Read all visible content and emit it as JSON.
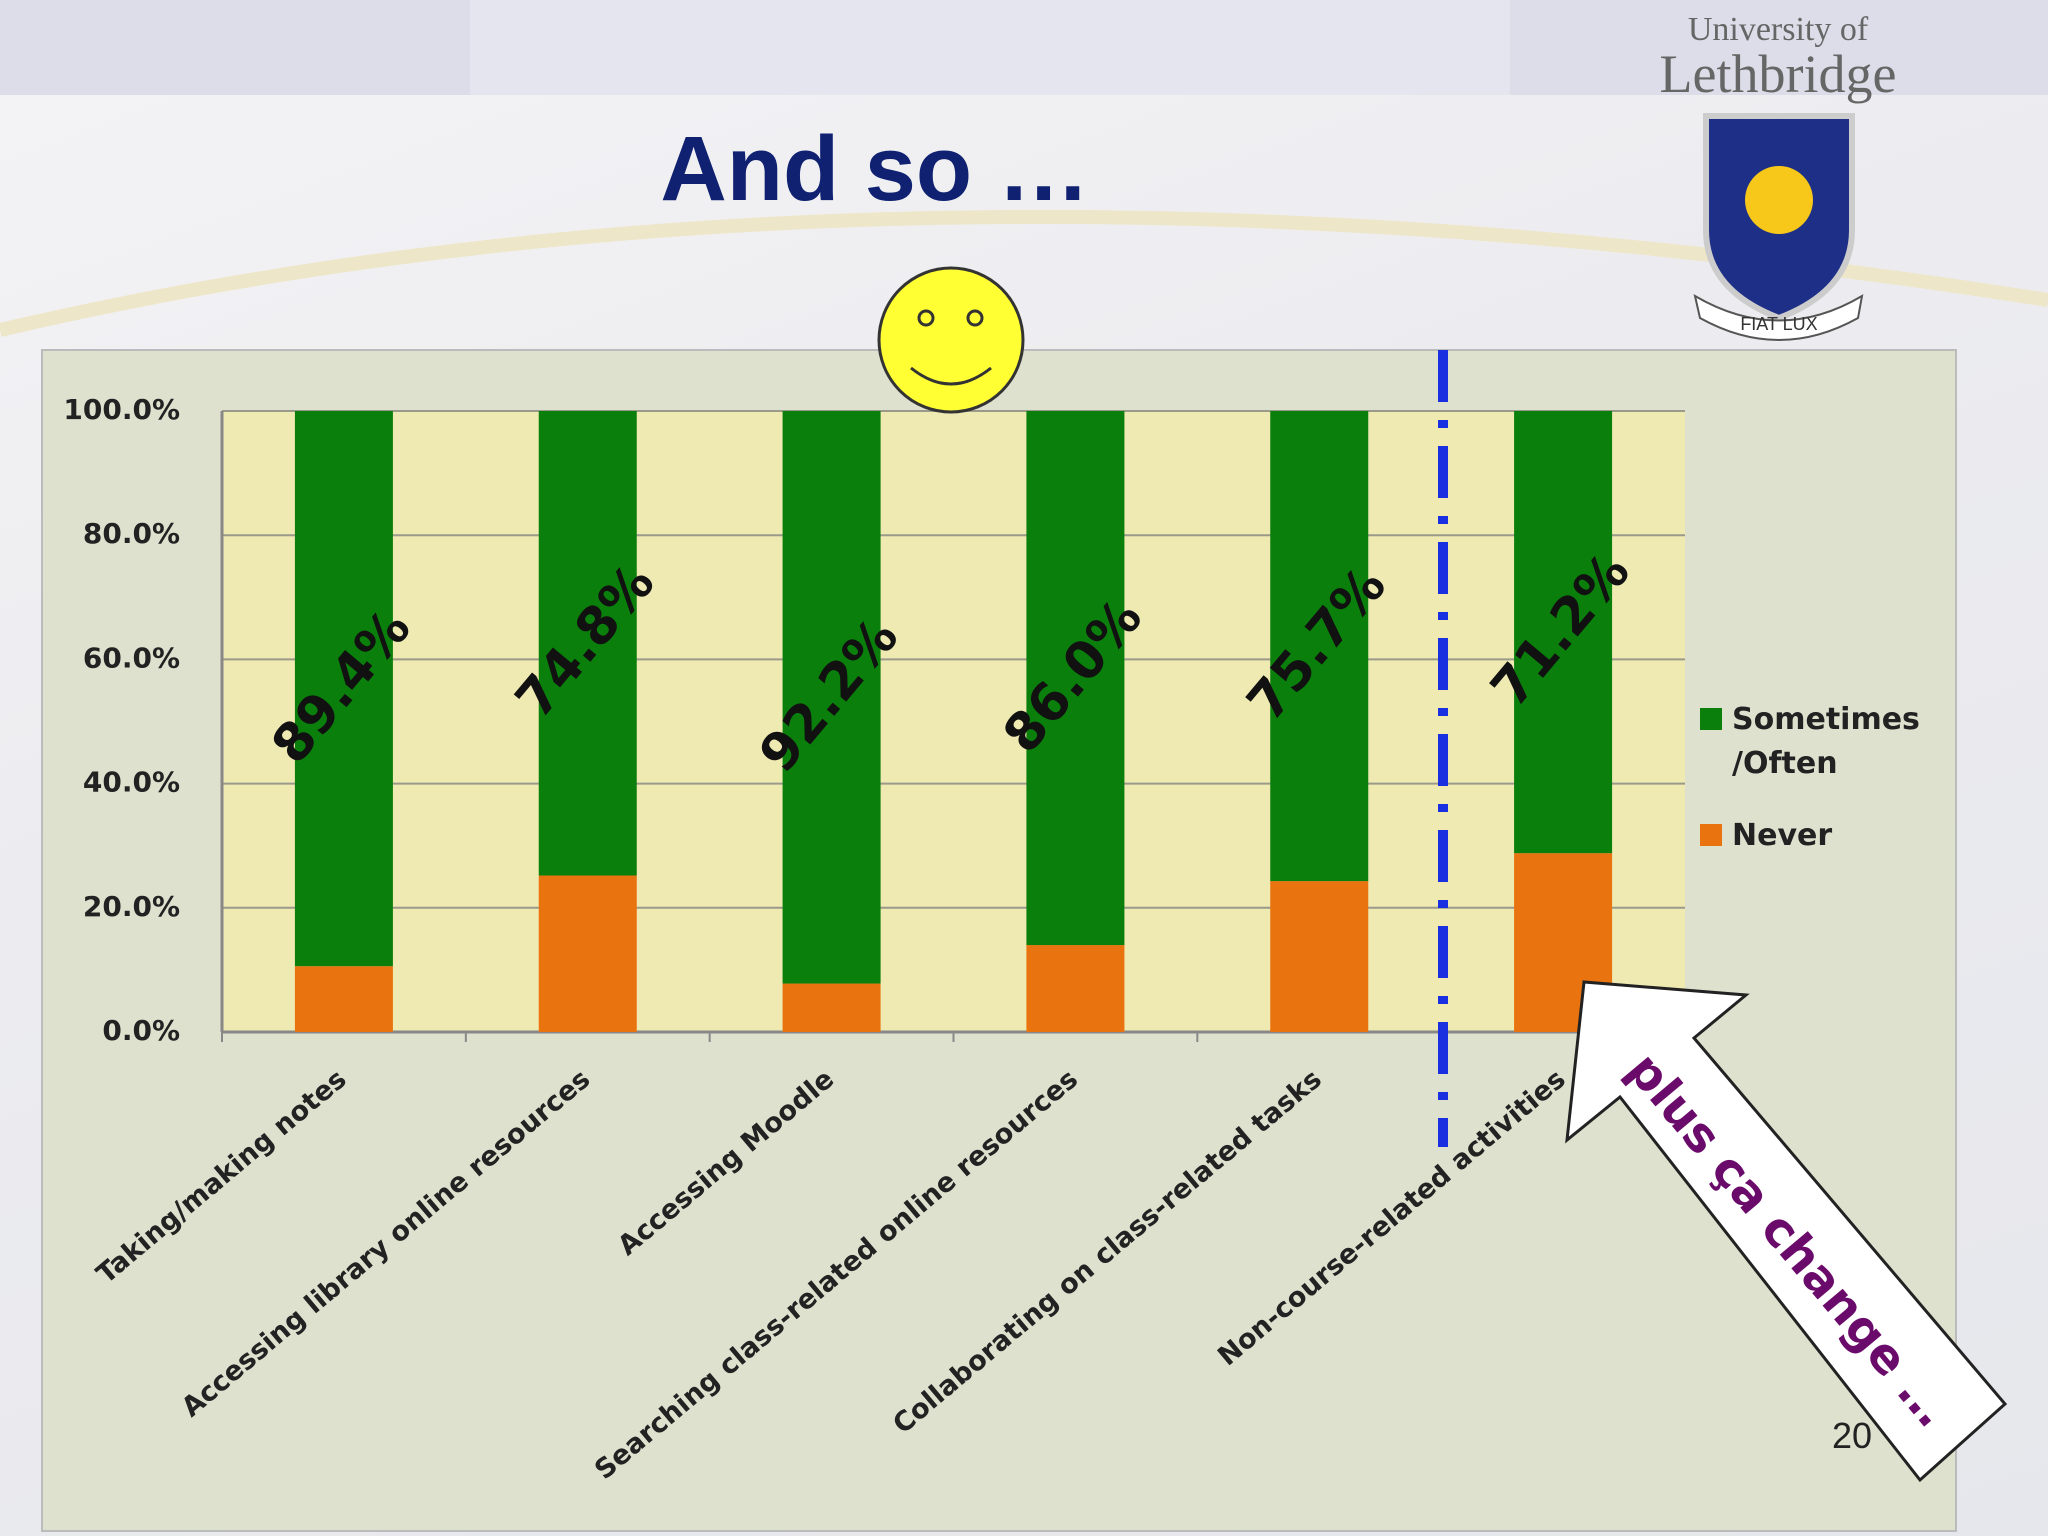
{
  "slide": {
    "title": "And so …",
    "logo_line1": "University of",
    "logo_line2": "Lethbridge",
    "motto": "FIAT LUX",
    "callout": "plus ça change …",
    "page_number": "20"
  },
  "chart_data": {
    "type": "stacked_bar",
    "categories": [
      "Taking/making notes",
      "Accessing library online resources",
      "Accessing Moodle",
      "Searching class-related online resources",
      "Collaborating on class-related tasks",
      "Non-course-related activities"
    ],
    "series": [
      {
        "name": "Sometimes /Often",
        "color": "#0b7f0b",
        "values": [
          89.4,
          74.8,
          92.2,
          86.0,
          75.7,
          71.2
        ],
        "value_labels": [
          "89.4%",
          "74.8%",
          "92.2%",
          "86.0%",
          "75.7%",
          "71.2%"
        ]
      },
      {
        "name": "Never",
        "color": "#e8730f",
        "values": [
          10.6,
          25.2,
          7.8,
          14.0,
          24.3,
          28.8
        ]
      }
    ],
    "stack_order": [
      "Never",
      "Sometimes /Often"
    ],
    "ylim": [
      0,
      100
    ],
    "yticks": [
      {
        "value": 0,
        "label": "0.0%"
      },
      {
        "value": 20,
        "label": "20.0%"
      },
      {
        "value": 40,
        "label": "40.0%"
      },
      {
        "value": 60,
        "label": "60.0%"
      },
      {
        "value": 80,
        "label": "80.0%"
      },
      {
        "value": 100,
        "label": "100.0%"
      }
    ],
    "grid": true,
    "legend": "right"
  }
}
